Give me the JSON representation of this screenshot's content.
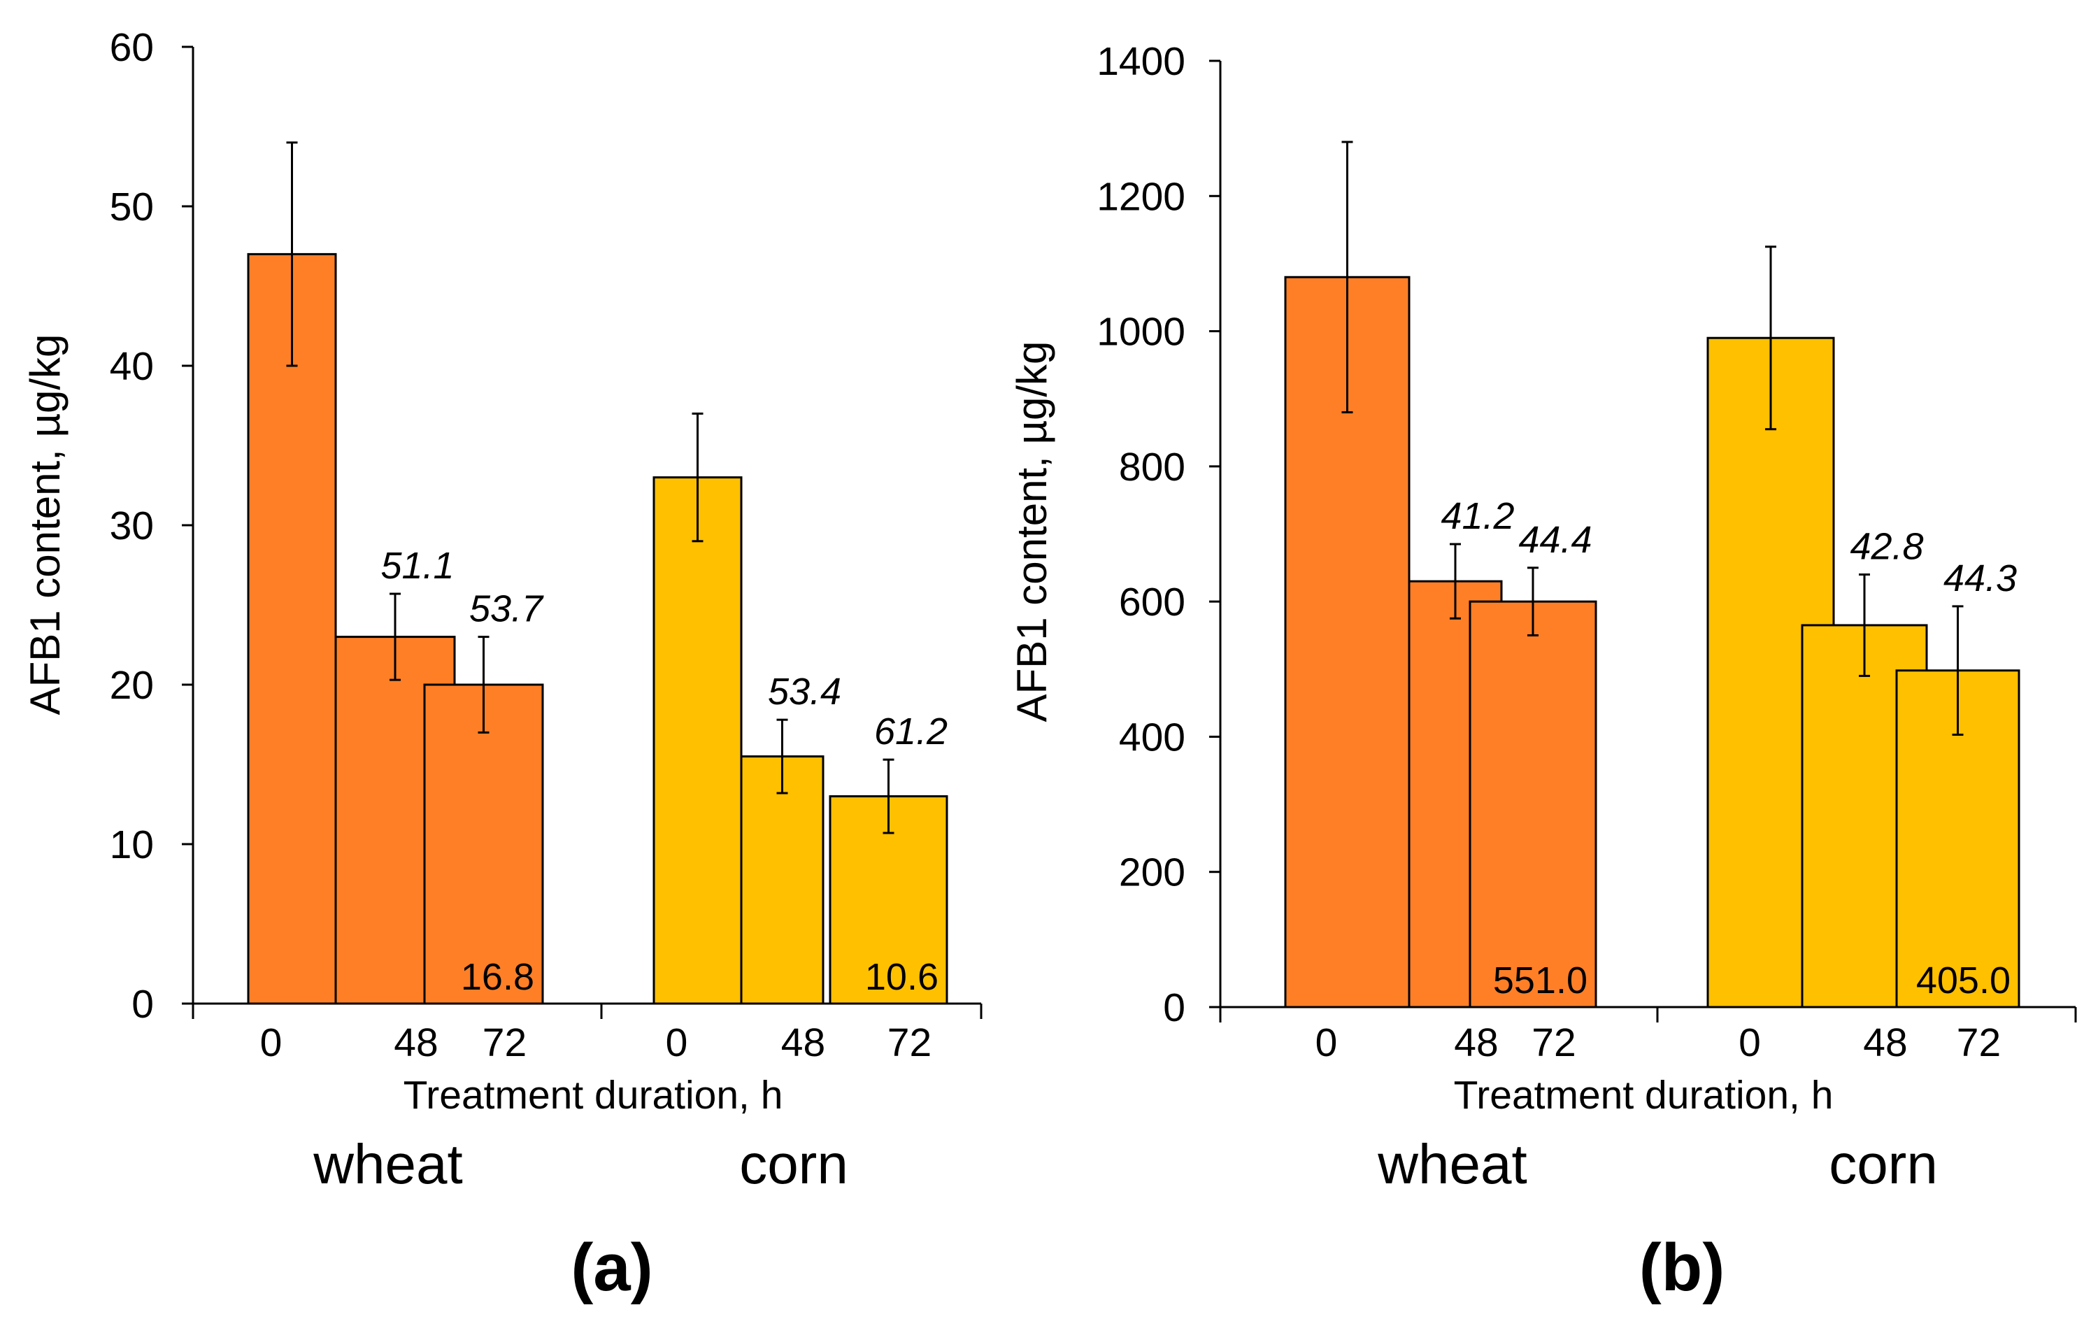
{
  "chart_data": [
    {
      "type": "bar",
      "panel_label": "(a)",
      "ylabel": "AFB1 content, µg/kg",
      "xlabel": "Treatment duration, h",
      "ylim": [
        0,
        60
      ],
      "yticks": [
        "0",
        "10",
        "20",
        "30",
        "40",
        "50",
        "60"
      ],
      "groups": [
        {
          "name": "wheat",
          "color": "#FF7F27",
          "categories": [
            "0",
            "48",
            "72"
          ],
          "values": [
            47,
            23,
            20
          ],
          "errors": [
            7,
            2.7,
            3
          ],
          "reduction_labels": [
            "",
            "51.1",
            "53.7"
          ],
          "inner_label": "16.8"
        },
        {
          "name": "corn",
          "color": "#FFC000",
          "categories": [
            "0",
            "48",
            "72"
          ],
          "values": [
            33,
            15.5,
            13
          ],
          "errors": [
            4,
            2.3,
            2.3
          ],
          "reduction_labels": [
            "",
            "53.4",
            "61.2"
          ],
          "inner_label": "10.6"
        }
      ]
    },
    {
      "type": "bar",
      "panel_label": "(b)",
      "ylabel": "AFB1 content, µg/kg",
      "xlabel": "Treatment duration, h",
      "ylim": [
        0,
        1400
      ],
      "yticks": [
        "0",
        "200",
        "400",
        "600",
        "800",
        "1000",
        "1200",
        "1400"
      ],
      "groups": [
        {
          "name": "wheat",
          "color": "#FF7F27",
          "categories": [
            "0",
            "48",
            "72"
          ],
          "values": [
            1080,
            630,
            600
          ],
          "errors": [
            200,
            55,
            50
          ],
          "reduction_labels": [
            "",
            "41.2",
            "44.4"
          ],
          "inner_label": "551.0"
        },
        {
          "name": "corn",
          "color": "#FFC000",
          "categories": [
            "0",
            "48",
            "72"
          ],
          "values": [
            990,
            565,
            498
          ],
          "errors": [
            135,
            75,
            95
          ],
          "reduction_labels": [
            "",
            "42.8",
            "44.3"
          ],
          "inner_label": "405.0"
        }
      ]
    }
  ]
}
